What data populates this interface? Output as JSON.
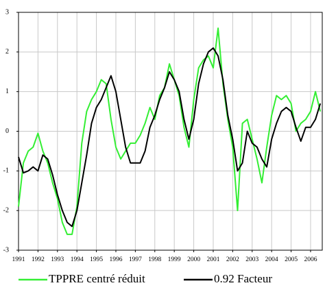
{
  "chart_data": {
    "type": "line",
    "x": [
      1991,
      1991.25,
      1991.5,
      1991.75,
      1992,
      1992.25,
      1992.5,
      1992.75,
      1993,
      1993.25,
      1993.5,
      1993.75,
      1994,
      1994.25,
      1994.5,
      1994.75,
      1995,
      1995.25,
      1995.5,
      1995.75,
      1996,
      1996.25,
      1996.5,
      1996.75,
      1997,
      1997.25,
      1997.5,
      1997.75,
      1998,
      1998.25,
      1998.5,
      1998.75,
      1999,
      1999.25,
      1999.5,
      1999.75,
      2000,
      2000.25,
      2000.5,
      2000.75,
      2001,
      2001.25,
      2001.5,
      2001.75,
      2002,
      2002.25,
      2002.5,
      2002.75,
      2003,
      2003.25,
      2003.5,
      2003.75,
      2004,
      2004.25,
      2004.5,
      2004.75,
      2005,
      2005.25,
      2005.5,
      2005.75,
      2006,
      2006.25,
      2006.5
    ],
    "series": [
      {
        "name": "TPPRE centré réduit",
        "color": "#33ee33",
        "values": [
          -1.9,
          -0.8,
          -0.5,
          -0.4,
          -0.05,
          -0.5,
          -0.8,
          -1.3,
          -1.7,
          -2.3,
          -2.6,
          -2.6,
          -1.9,
          -0.3,
          0.5,
          0.8,
          1.0,
          1.3,
          1.2,
          0.3,
          -0.4,
          -0.7,
          -0.5,
          -0.3,
          -0.3,
          -0.1,
          0.2,
          0.6,
          0.3,
          0.9,
          1.1,
          1.7,
          1.3,
          0.9,
          0.1,
          -0.4,
          0.8,
          1.6,
          1.8,
          1.9,
          1.6,
          2.6,
          1.2,
          0.3,
          -0.4,
          -2.0,
          0.2,
          0.3,
          -0.2,
          -0.7,
          -1.3,
          -0.4,
          0.4,
          0.9,
          0.8,
          0.9,
          0.7,
          0.0,
          0.2,
          0.3,
          0.5,
          1.0,
          0.5
        ]
      },
      {
        "name": "0.92 Facteur",
        "color": "#000000",
        "values": [
          -0.65,
          -1.05,
          -1.0,
          -0.9,
          -1.0,
          -0.6,
          -0.7,
          -1.1,
          -1.6,
          -2.0,
          -2.3,
          -2.4,
          -2.0,
          -1.3,
          -0.6,
          0.2,
          0.6,
          0.8,
          1.1,
          1.4,
          1.0,
          0.3,
          -0.4,
          -0.8,
          -0.8,
          -0.8,
          -0.5,
          0.1,
          0.4,
          0.8,
          1.1,
          1.5,
          1.3,
          1.0,
          0.3,
          -0.2,
          0.3,
          1.2,
          1.7,
          2.0,
          2.1,
          1.9,
          1.3,
          0.4,
          -0.2,
          -1.0,
          -0.8,
          0.0,
          -0.3,
          -0.4,
          -0.7,
          -0.9,
          -0.2,
          0.2,
          0.5,
          0.6,
          0.5,
          0.1,
          -0.25,
          0.1,
          0.1,
          0.3,
          0.7
        ]
      }
    ],
    "xlim": [
      1991,
      2006.6
    ],
    "xticks": [
      1991,
      1992,
      1993,
      1994,
      1995,
      1996,
      1997,
      1998,
      1999,
      2000,
      2001,
      2002,
      2003,
      2004,
      2005,
      2006
    ],
    "ylim": [
      -3,
      3
    ],
    "yticks": [
      -3,
      -2,
      -1,
      0,
      1,
      2,
      3
    ],
    "grid": true,
    "legend": "bottom"
  }
}
